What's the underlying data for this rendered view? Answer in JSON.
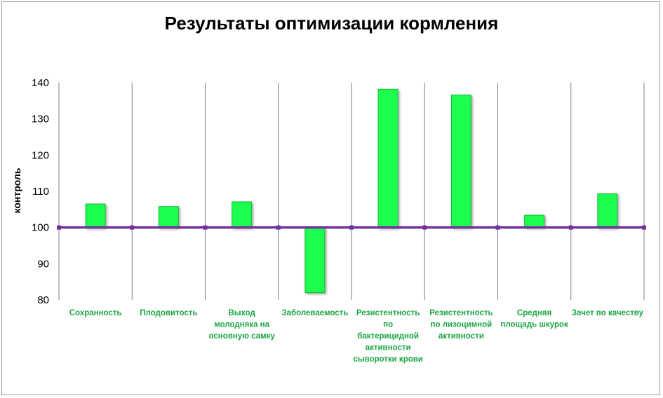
{
  "chart_data": {
    "type": "bar",
    "title": "Результаты оптимизации кормления",
    "ylabel": "контроль",
    "xlabel": "",
    "ylim": [
      80,
      140
    ],
    "yticks": [
      80,
      90,
      100,
      110,
      120,
      130,
      140
    ],
    "baseline": 100,
    "categories": [
      [
        "Сохранность"
      ],
      [
        "Плодовитость"
      ],
      [
        "Выход",
        "молодняка на",
        "основную самку"
      ],
      [
        "Заболеваемость"
      ],
      [
        "Резистентность",
        "по",
        "бактерицидной",
        "активности",
        "сыворотки крови"
      ],
      [
        "Резистентность",
        "по  лизоцимной",
        "активности"
      ],
      [
        "Средняя",
        "площадь шкурок"
      ],
      [
        "Зачет по качеству"
      ]
    ],
    "values": [
      106.5,
      105.8,
      107.1,
      82.0,
      138.2,
      136.6,
      103.4,
      109.3
    ],
    "colors": {
      "bar_fill": "#1eff50",
      "bar_edge": "#12b832",
      "baseline": "#7030a0",
      "category_text": "#1aa642",
      "gridline": "#7f7f7f"
    },
    "grid": "vertical category separators",
    "legend": "none"
  }
}
